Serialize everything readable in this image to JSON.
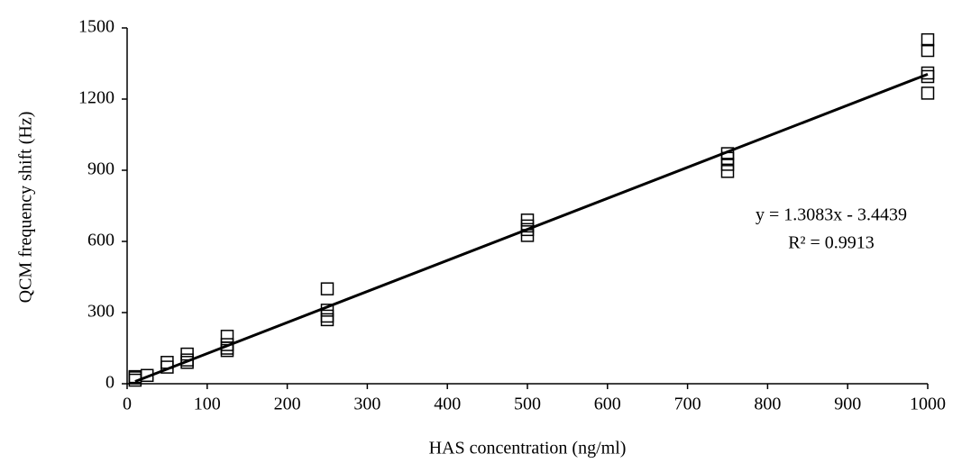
{
  "chart_data": {
    "type": "scatter",
    "x_label": "HAS concentration (ng/ml)",
    "y_label": "QCM frequency shift (Hz)",
    "x": [
      10,
      10,
      10,
      25,
      50,
      50,
      75,
      75,
      75,
      125,
      125,
      125,
      125,
      250,
      250,
      250,
      250,
      500,
      500,
      500,
      500,
      750,
      750,
      750,
      750,
      1000,
      1000,
      1000,
      1000,
      1000
    ],
    "values": [
      15,
      25,
      30,
      35,
      70,
      90,
      90,
      100,
      125,
      140,
      150,
      165,
      200,
      270,
      285,
      310,
      400,
      625,
      650,
      665,
      690,
      895,
      925,
      950,
      970,
      1225,
      1295,
      1310,
      1405,
      1450
    ],
    "color": "#000000",
    "marker": "square-open",
    "trendline": {
      "slope": 1.3083,
      "intercept": -3.4439,
      "equation": "y = 1.3083x - 3.4439",
      "r_squared": "R² = 0.9913"
    },
    "xlim": [
      0,
      1000
    ],
    "xticks": [
      0,
      100,
      200,
      300,
      400,
      500,
      600,
      700,
      800,
      900,
      1000
    ],
    "ylim": [
      0,
      1500
    ],
    "yticks": [
      0,
      300,
      600,
      900,
      1200,
      1500
    ],
    "grid": false
  }
}
